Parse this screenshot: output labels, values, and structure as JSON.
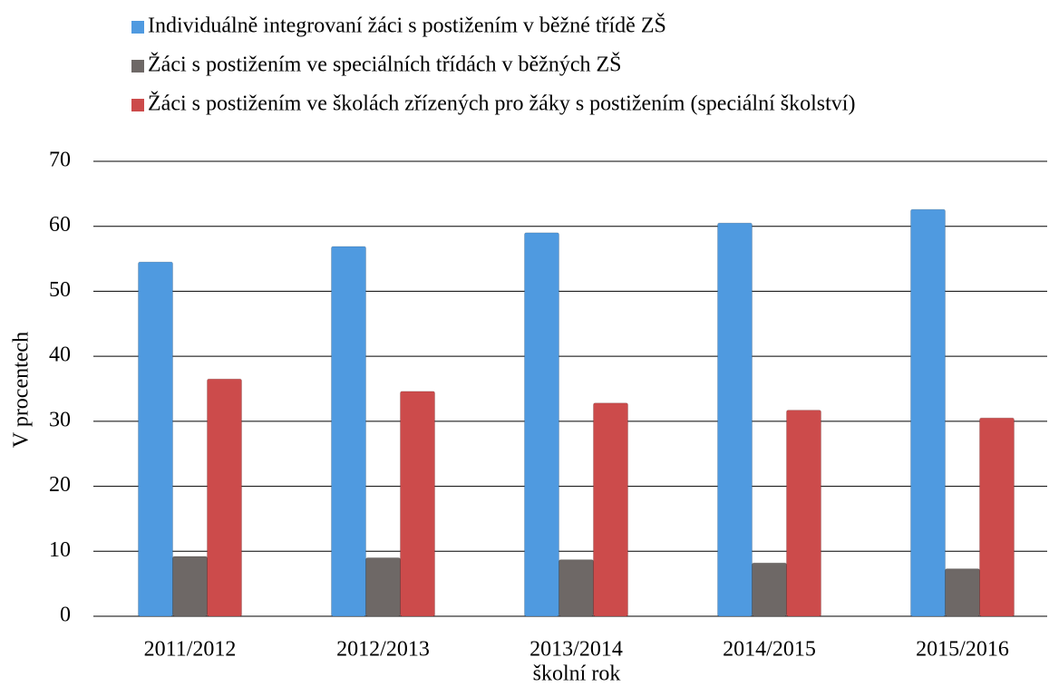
{
  "chart_data": {
    "type": "bar",
    "categories": [
      "2011/2012",
      "2012/2013",
      "2013/2014",
      "2014/2015",
      "2015/2016"
    ],
    "series": [
      {
        "name": "Individuálně integrovaní žáci s postižením v běžné třídě ZŠ",
        "color": "#4f9ae0",
        "values": [
          54.5,
          56.9,
          59.0,
          60.5,
          62.6
        ]
      },
      {
        "name": "Žáci s postižením ve speciálních třídách v běžných ZŠ",
        "color": "#6e6866",
        "values": [
          9.2,
          9.0,
          8.7,
          8.2,
          7.3
        ]
      },
      {
        "name": "Žáci s postižením ve školách zřízených pro žáky s postižením (speciální školství)",
        "color": "#cc4b4b",
        "values": [
          36.5,
          34.6,
          32.8,
          31.7,
          30.5
        ]
      }
    ],
    "ylabel": "V procentech",
    "xlabel": "školní rok",
    "ylim": [
      0,
      70
    ],
    "yticks": [
      0,
      10,
      20,
      30,
      40,
      50,
      60,
      70
    ],
    "grid": true,
    "legend": "top"
  }
}
